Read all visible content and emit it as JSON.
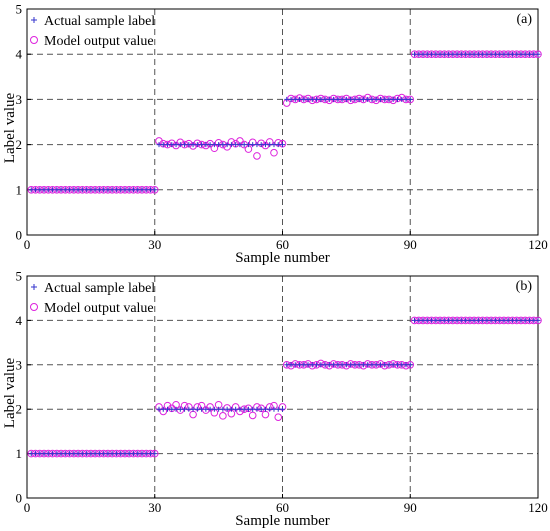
{
  "chart_data": [
    {
      "type": "scatter",
      "panel_label": "(a)",
      "xlabel": "Sample number",
      "ylabel": "Label value",
      "xlim": [
        0,
        120
      ],
      "ylim": [
        0,
        5
      ],
      "xticks": [
        0,
        30,
        60,
        90,
        120
      ],
      "yticks": [
        0,
        1,
        2,
        3,
        4,
        5
      ],
      "grid": true,
      "legend_position": "top-left",
      "series": [
        {
          "name": "Actual sample label",
          "marker": "plus",
          "color": "#3333cc",
          "segments": [
            {
              "x_start": 1,
              "x_end": 30,
              "y": 1
            },
            {
              "x_start": 31,
              "x_end": 60,
              "y": 2
            },
            {
              "x_start": 61,
              "x_end": 90,
              "y": 3
            },
            {
              "x_start": 91,
              "x_end": 120,
              "y": 4
            }
          ]
        },
        {
          "name": "Model output value",
          "marker": "circle",
          "color": "#dd22dd",
          "y": [
            1.0,
            1.0,
            1.0,
            1.0,
            1.0,
            1.0,
            1.0,
            1.0,
            1.0,
            1.0,
            1.0,
            1.0,
            1.0,
            1.0,
            1.0,
            1.0,
            1.0,
            1.0,
            1.0,
            1.0,
            1.0,
            1.0,
            1.0,
            1.0,
            1.0,
            1.0,
            1.0,
            1.0,
            1.0,
            1.0,
            2.08,
            2.02,
            2.0,
            2.03,
            1.98,
            2.05,
            2.0,
            2.02,
            1.97,
            2.03,
            2.0,
            1.98,
            2.02,
            1.92,
            2.04,
            2.0,
            1.95,
            2.06,
            2.02,
            2.08,
            2.0,
            1.9,
            2.05,
            1.75,
            2.03,
            1.98,
            2.06,
            1.82,
            2.04,
            2.02,
            2.92,
            3.02,
            3.0,
            3.03,
            3.0,
            3.02,
            2.98,
            3.0,
            3.02,
            3.0,
            2.98,
            3.02,
            3.0,
            3.0,
            3.02,
            2.98,
            3.0,
            3.02,
            3.0,
            3.04,
            3.0,
            2.98,
            3.02,
            3.0,
            3.0,
            2.98,
            3.02,
            3.04,
            3.0,
            3.0,
            4.0,
            4.0,
            4.0,
            4.0,
            4.0,
            4.0,
            4.0,
            4.0,
            4.0,
            4.0,
            4.0,
            4.0,
            4.0,
            4.0,
            4.0,
            4.0,
            4.0,
            4.0,
            4.0,
            4.0,
            4.0,
            4.0,
            4.0,
            4.0,
            4.0,
            4.0,
            4.0,
            4.0,
            4.0,
            4.0
          ]
        }
      ]
    },
    {
      "type": "scatter",
      "panel_label": "(b)",
      "xlabel": "Sample number",
      "ylabel": "Label value",
      "xlim": [
        0,
        120
      ],
      "ylim": [
        0,
        5
      ],
      "xticks": [
        0,
        30,
        60,
        90,
        120
      ],
      "yticks": [
        0,
        1,
        2,
        3,
        4,
        5
      ],
      "grid": true,
      "legend_position": "top-left",
      "series": [
        {
          "name": "Actual sample label",
          "marker": "plus",
          "color": "#3333cc",
          "segments": [
            {
              "x_start": 1,
              "x_end": 30,
              "y": 1
            },
            {
              "x_start": 31,
              "x_end": 60,
              "y": 2
            },
            {
              "x_start": 61,
              "x_end": 90,
              "y": 3
            },
            {
              "x_start": 91,
              "x_end": 120,
              "y": 4
            }
          ]
        },
        {
          "name": "Model output value",
          "marker": "circle",
          "color": "#dd22dd",
          "y": [
            1.0,
            1.0,
            1.0,
            1.0,
            1.0,
            1.0,
            1.0,
            1.0,
            1.0,
            1.0,
            1.0,
            1.0,
            1.0,
            1.0,
            1.0,
            1.0,
            1.0,
            1.0,
            1.0,
            1.0,
            1.0,
            1.0,
            1.0,
            1.0,
            1.0,
            1.0,
            1.0,
            1.0,
            1.0,
            1.0,
            2.05,
            1.95,
            2.08,
            2.02,
            2.1,
            1.98,
            2.08,
            2.05,
            1.88,
            2.05,
            2.08,
            1.98,
            2.05,
            1.92,
            2.1,
            1.85,
            2.03,
            1.9,
            2.05,
            1.95,
            2.0,
            2.02,
            1.86,
            2.05,
            2.02,
            1.88,
            2.05,
            2.08,
            1.82,
            2.05,
            3.0,
            2.98,
            3.02,
            3.0,
            3.0,
            3.02,
            2.98,
            3.0,
            3.03,
            3.0,
            2.98,
            3.02,
            3.0,
            3.0,
            2.98,
            3.02,
            3.0,
            3.0,
            2.98,
            3.02,
            3.0,
            3.0,
            3.02,
            2.98,
            3.0,
            3.02,
            3.0,
            3.0,
            2.98,
            3.0,
            4.0,
            4.0,
            4.0,
            4.0,
            4.0,
            4.0,
            4.0,
            4.0,
            4.0,
            4.0,
            4.0,
            4.0,
            4.0,
            4.0,
            4.0,
            4.0,
            4.0,
            4.0,
            4.0,
            4.0,
            4.0,
            4.0,
            4.0,
            4.0,
            4.0,
            4.0,
            4.0,
            4.0,
            4.0,
            4.0
          ]
        }
      ]
    }
  ]
}
